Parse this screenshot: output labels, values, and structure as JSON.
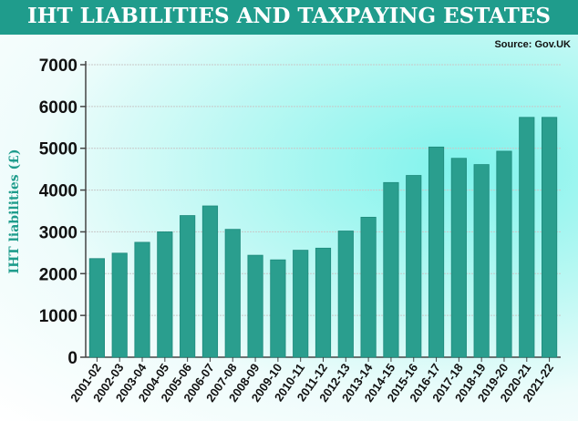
{
  "chart_data": {
    "type": "bar",
    "title": "IHT LIABILITIES AND TAXPAYING ESTATES",
    "source": "Source: Gov.UK",
    "xlabel": "",
    "ylabel": "IHT liabilities (£)",
    "ylim": [
      0,
      7000
    ],
    "yticks": [
      0,
      1000,
      2000,
      3000,
      4000,
      5000,
      6000,
      7000
    ],
    "grid": true,
    "bar_color": "#2a9e8e",
    "categories": [
      "2001-02",
      "2002-03",
      "2003-04",
      "2004-05",
      "2005-06",
      "2006-07",
      "2007-08",
      "2008-09",
      "2009-10",
      "2010-11",
      "2011-12",
      "2012-13",
      "2013-14",
      "2014-15",
      "2015-16",
      "2016-17",
      "2017-18",
      "2018-19",
      "2019-20",
      "2020-21",
      "2021-22"
    ],
    "values": [
      2360,
      2490,
      2750,
      3000,
      3390,
      3620,
      3060,
      2440,
      2330,
      2560,
      2610,
      3020,
      3350,
      4180,
      4350,
      5030,
      4760,
      4610,
      4930,
      5740,
      5740
    ]
  }
}
